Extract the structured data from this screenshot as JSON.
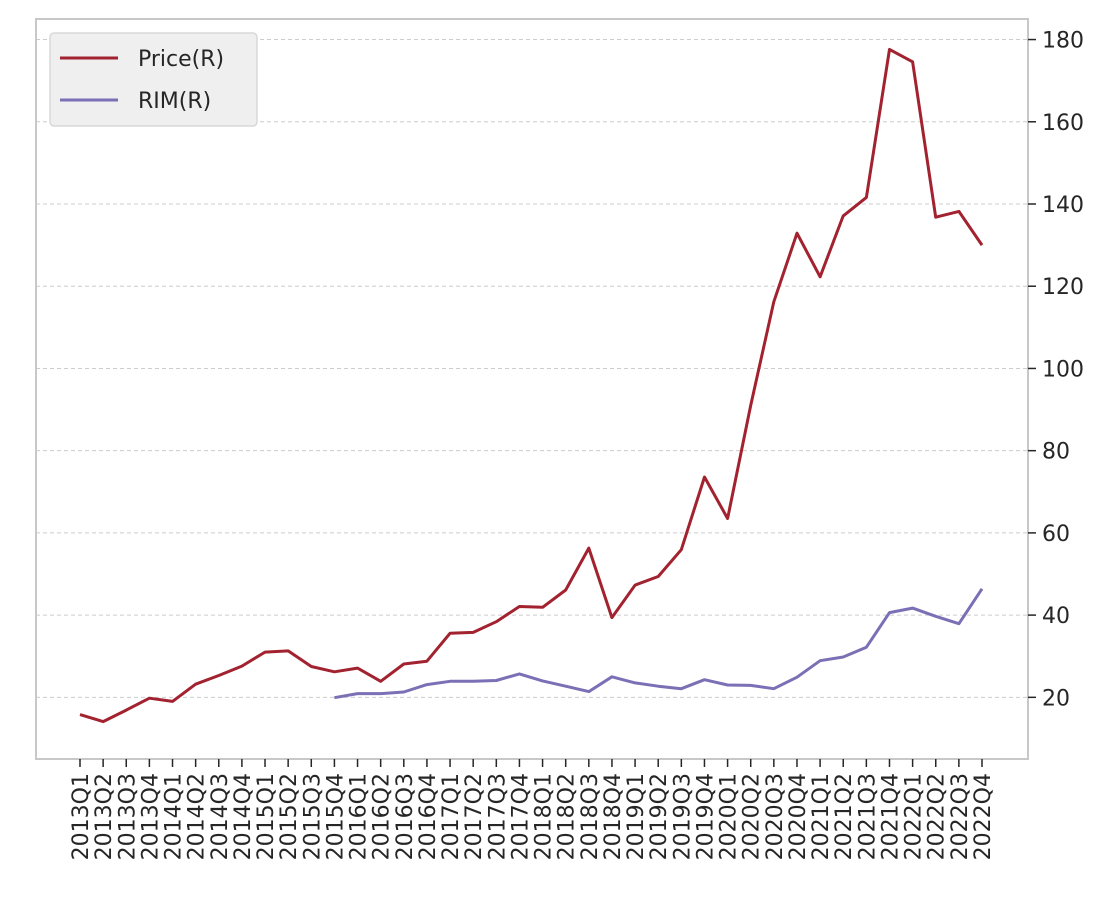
{
  "chart_data": {
    "type": "line",
    "title": "",
    "xlabel": "",
    "ylabel": "",
    "ylim": [
      5,
      185
    ],
    "y_axis_side": "right",
    "yticks": [
      20,
      40,
      60,
      80,
      100,
      120,
      140,
      160,
      180
    ],
    "grid": "horizontal dashed",
    "legend_position": "top-left",
    "categories": [
      "2013Q1",
      "2013Q2",
      "2013Q3",
      "2013Q4",
      "2014Q1",
      "2014Q2",
      "2014Q3",
      "2014Q4",
      "2015Q1",
      "2015Q2",
      "2015Q3",
      "2015Q4",
      "2016Q1",
      "2016Q2",
      "2016Q3",
      "2016Q4",
      "2017Q1",
      "2017Q2",
      "2017Q3",
      "2017Q4",
      "2018Q1",
      "2018Q2",
      "2018Q3",
      "2018Q4",
      "2019Q1",
      "2019Q2",
      "2019Q3",
      "2019Q4",
      "2020Q1",
      "2020Q2",
      "2020Q3",
      "2020Q4",
      "2021Q1",
      "2021Q2",
      "2021Q3",
      "2021Q4",
      "2022Q1",
      "2022Q2",
      "2022Q3",
      "2022Q4"
    ],
    "series": [
      {
        "name": "Price(R)",
        "color": "#a2222f",
        "values": [
          15.8,
          14.1,
          16.9,
          19.8,
          19.0,
          23.2,
          25.3,
          27.6,
          31.0,
          31.3,
          27.5,
          26.2,
          27.1,
          23.9,
          28.1,
          28.8,
          35.6,
          35.8,
          38.4,
          42.1,
          41.9,
          46.1,
          56.3,
          39.4,
          47.3,
          49.4,
          55.9,
          73.6,
          63.5,
          91.0,
          116.2,
          132.9,
          122.3,
          137.1,
          141.6,
          177.6,
          174.6,
          136.8,
          138.2,
          130.0
        ]
      },
      {
        "name": "RIM(R)",
        "color": "#7b6fb5",
        "values": [
          null,
          null,
          null,
          null,
          null,
          null,
          null,
          null,
          null,
          null,
          null,
          19.9,
          20.9,
          20.9,
          21.3,
          23.1,
          23.9,
          23.9,
          24.1,
          25.7,
          24.0,
          22.7,
          21.4,
          25.0,
          23.5,
          22.7,
          22.1,
          24.3,
          23.0,
          22.9,
          22.1,
          24.9,
          28.9,
          29.8,
          32.2,
          40.6,
          41.7,
          39.7,
          37.9,
          46.4
        ]
      }
    ]
  }
}
